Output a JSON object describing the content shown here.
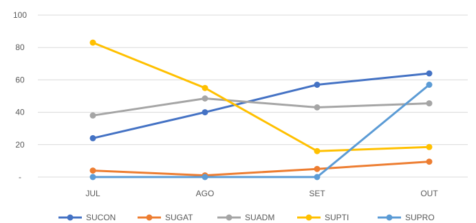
{
  "chart_data": {
    "type": "line",
    "title": "",
    "xlabel": "",
    "ylabel": "",
    "categories": [
      "JUL",
      "AGO",
      "SET",
      "OUT"
    ],
    "ylim": [
      0,
      100
    ],
    "yticks": [
      {
        "value": 0,
        "label": "-"
      },
      {
        "value": 20,
        "label": "20"
      },
      {
        "value": 40,
        "label": "40"
      },
      {
        "value": 60,
        "label": "60"
      },
      {
        "value": 80,
        "label": "80"
      },
      {
        "value": 100,
        "label": "100"
      }
    ],
    "grid": true,
    "legend_position": "bottom",
    "series": [
      {
        "name": "SUCON",
        "color": "#4472C4",
        "values": [
          24,
          40,
          57,
          64
        ]
      },
      {
        "name": "SUGAT",
        "color": "#ED7D31",
        "values": [
          4,
          1,
          5,
          9.5
        ]
      },
      {
        "name": "SUADM",
        "color": "#A5A5A5",
        "values": [
          38,
          48.5,
          43,
          45.5
        ]
      },
      {
        "name": "SUPTI",
        "color": "#FFC000",
        "values": [
          83,
          55,
          16,
          18.5
        ]
      },
      {
        "name": "SUPRO",
        "color": "#5B9BD5",
        "values": [
          0,
          0,
          0,
          57
        ]
      }
    ]
  }
}
